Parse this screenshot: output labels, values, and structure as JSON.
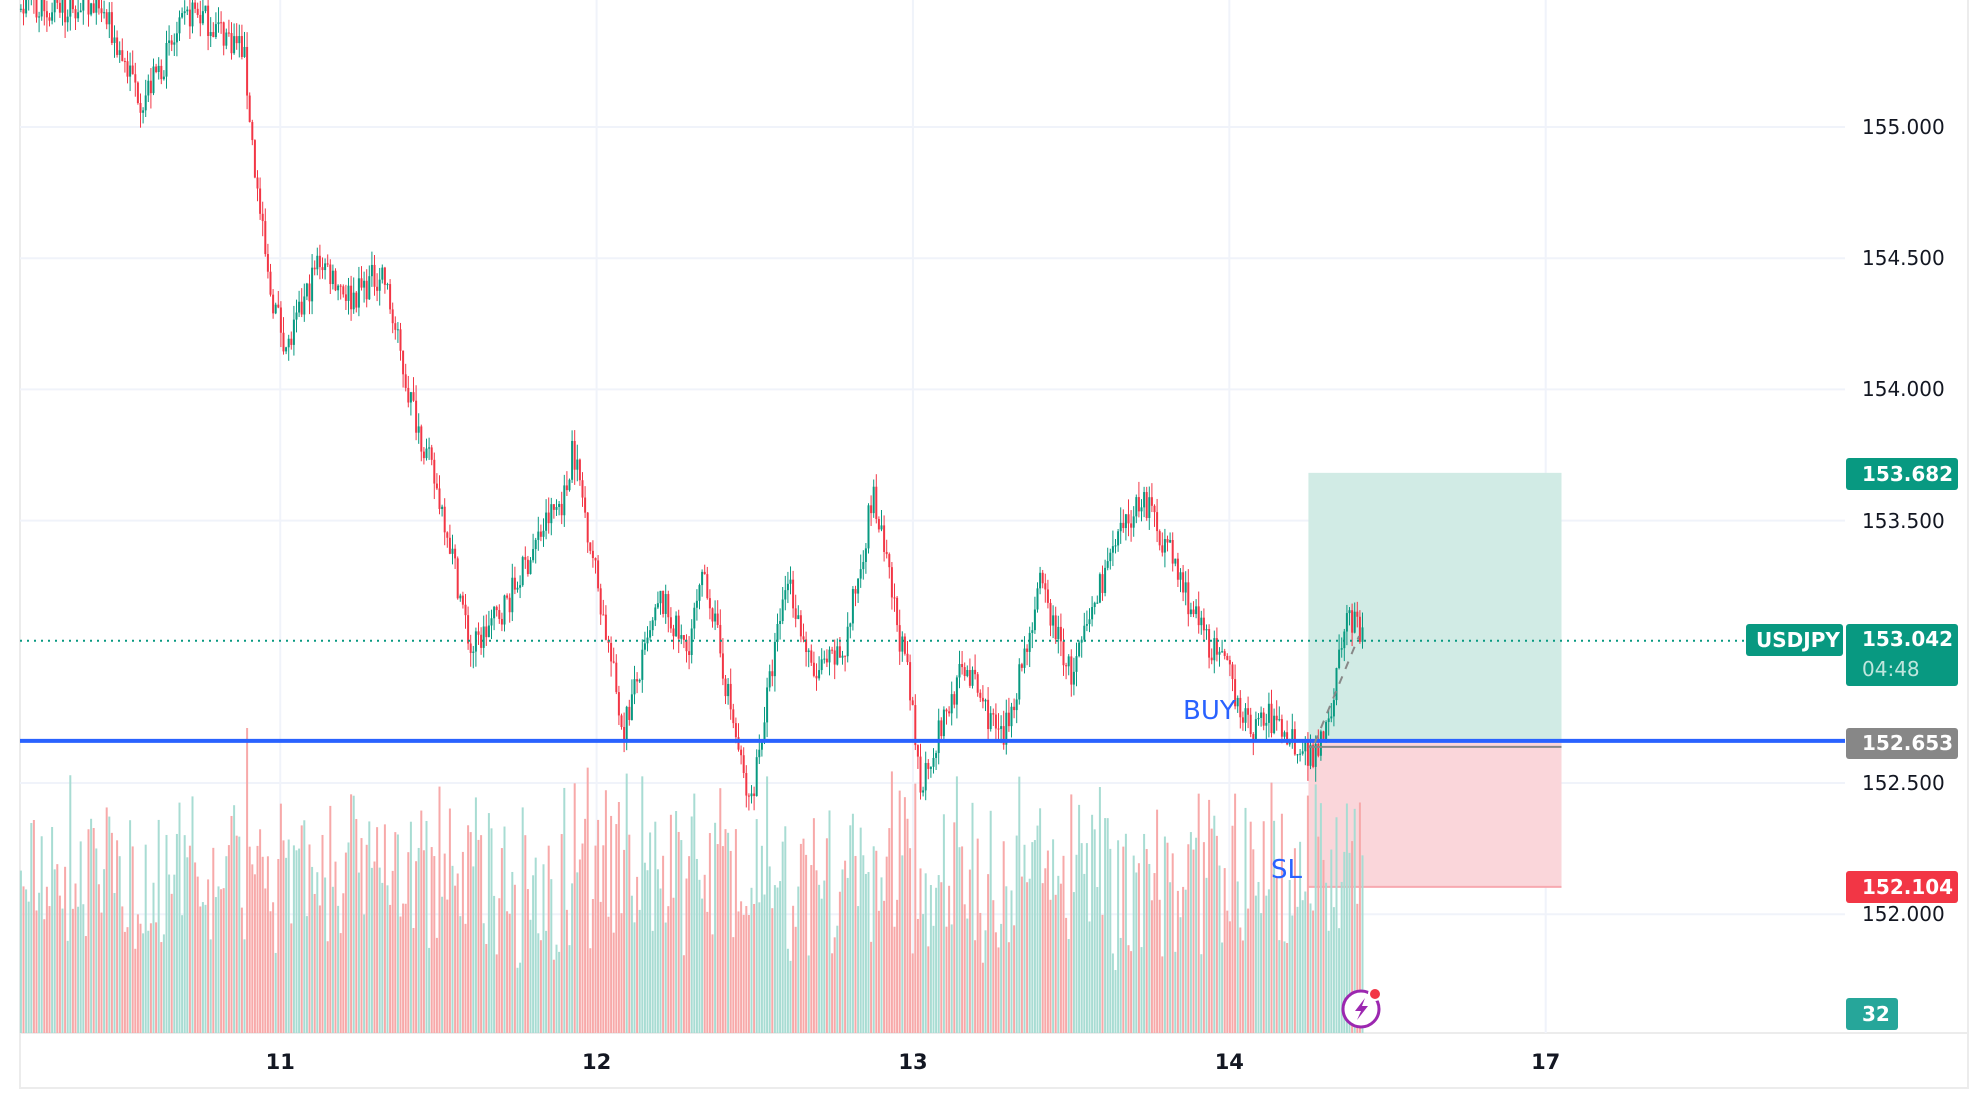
{
  "symbol": "USDJPY",
  "price_axis": {
    "ticks": [
      "155.000",
      "154.500",
      "154.000",
      "153.500",
      "152.500",
      "152.000"
    ]
  },
  "date_axis": {
    "ticks": [
      "11",
      "12",
      "13",
      "14",
      "17"
    ]
  },
  "badges": {
    "take_profit": "153.682",
    "current_price": "153.042",
    "countdown": "04:48",
    "entry": "152.653",
    "stop_loss": "152.104",
    "volume": "32"
  },
  "annotations": {
    "buy": "BUY",
    "sl": "SL"
  },
  "colors": {
    "up": "#089981",
    "down": "#f23645",
    "entry_line": "#2962ff",
    "profit_zone": "#d1ebe5",
    "loss_zone": "#fad6da"
  },
  "icons": {
    "bottom": "lightning-icon"
  },
  "chart_data": {
    "type": "candlestick",
    "title": "",
    "ylim": [
      151.6,
      155.5
    ],
    "xlabel": "",
    "ylabel": "",
    "price_path": {
      "x": [
        10.43,
        10.56,
        10.72,
        10.88,
        10.92,
        10.96,
        11.02,
        11.12,
        11.22,
        11.32,
        11.4,
        11.52,
        11.6,
        11.72,
        11.84,
        11.9,
        11.92,
        11.98,
        12.08,
        12.2,
        12.28,
        12.34,
        12.48,
        12.6,
        12.68,
        12.78,
        12.87,
        12.98,
        13.02,
        13.16,
        13.28,
        13.4,
        13.5,
        13.6,
        13.72,
        13.8,
        13.9,
        14.0,
        14.06,
        14.12,
        14.26,
        14.32,
        14.37,
        14.42
      ],
      "y": [
        155.45,
        155.1,
        155.45,
        155.3,
        154.8,
        154.4,
        154.15,
        154.5,
        154.35,
        154.45,
        154.0,
        153.5,
        153.0,
        153.2,
        153.5,
        153.6,
        153.8,
        153.4,
        152.7,
        153.2,
        153.0,
        153.3,
        152.4,
        153.3,
        152.9,
        153.0,
        153.6,
        152.9,
        152.5,
        152.95,
        152.65,
        153.25,
        152.9,
        153.3,
        153.6,
        153.4,
        153.1,
        152.9,
        152.7,
        152.75,
        152.6,
        152.8,
        153.15,
        153.04
      ]
    },
    "position": {
      "side": "long",
      "entry": 152.653,
      "take_profit": 153.682,
      "stop_loss": 152.104,
      "start_day": 14.25,
      "end_day": 15.05
    },
    "last_price": 153.042
  }
}
